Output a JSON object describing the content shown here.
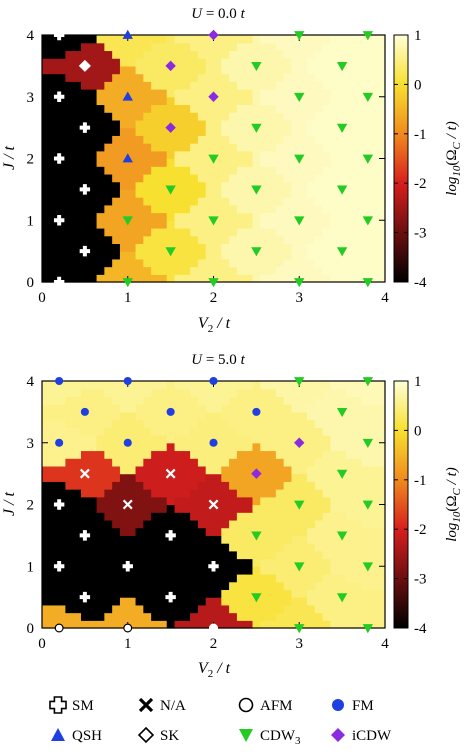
{
  "colorbar": {
    "label": "log10(ΩC / t)",
    "label_parts": {
      "fn": "log",
      "fn_sub": "10",
      "sym": "Ω",
      "sym_sub": "C",
      "tail": " / t)"
    },
    "ticks": [
      "1",
      "0",
      "-1",
      "-2",
      "-3",
      "-4"
    ],
    "range": [
      -4,
      1
    ],
    "colormap": [
      "#000000",
      "#6b0f0f",
      "#d81e1e",
      "#f08a1e",
      "#f8e030",
      "#ffffd8"
    ]
  },
  "legend": {
    "items": [
      {
        "key": "SM",
        "label": "SM",
        "color": "#000000"
      },
      {
        "key": "NA",
        "label": "N/A",
        "color": "#000000"
      },
      {
        "key": "AFM",
        "label": "AFM",
        "color": "#000000"
      },
      {
        "key": "FM",
        "label": "FM",
        "color": "#1f3fe0"
      },
      {
        "key": "QSH",
        "label": "QSH",
        "color": "#1f3fe0"
      },
      {
        "key": "SK",
        "label": "SK",
        "color": "#000000"
      },
      {
        "key": "CDW3",
        "label": "CDW",
        "label_sub": "3",
        "color": "#22cc22"
      },
      {
        "key": "iCDW",
        "label": "iCDW",
        "color": "#8a2be2"
      }
    ]
  },
  "chart_data": [
    {
      "type": "heatmap",
      "title": "U = 0.0 t",
      "title_parts": {
        "a": "U",
        "b": " = 0.0 ",
        "c": "t"
      },
      "xlabel": "V2 / t",
      "ylabel": "J / t",
      "xlim": [
        0,
        4
      ],
      "ylim": [
        0,
        4
      ],
      "xticks": [
        "0",
        "1",
        "2",
        "3",
        "4"
      ],
      "yticks": [
        "0",
        "1",
        "2",
        "3",
        "4"
      ],
      "points": [
        {
          "x": 0.2,
          "y": 4.0,
          "phase": "SM",
          "val": -4.0
        },
        {
          "x": 1.0,
          "y": 4.0,
          "phase": "QSH",
          "val": 0.2
        },
        {
          "x": 2.0,
          "y": 4.0,
          "phase": "iCDW",
          "val": 0.5
        },
        {
          "x": 3.0,
          "y": 4.0,
          "phase": "CDW3",
          "val": 0.85
        },
        {
          "x": 3.8,
          "y": 4.0,
          "phase": "CDW3",
          "val": 0.9
        },
        {
          "x": 0.5,
          "y": 3.5,
          "phase": "SK",
          "val": -2.5
        },
        {
          "x": 1.5,
          "y": 3.5,
          "phase": "iCDW",
          "val": 0.3
        },
        {
          "x": 2.5,
          "y": 3.5,
          "phase": "CDW3",
          "val": 0.75
        },
        {
          "x": 3.5,
          "y": 3.5,
          "phase": "CDW3",
          "val": 0.9
        },
        {
          "x": 0.2,
          "y": 3.0,
          "phase": "SM",
          "val": -4.0
        },
        {
          "x": 1.0,
          "y": 3.0,
          "phase": "QSH",
          "val": -0.6
        },
        {
          "x": 2.0,
          "y": 3.0,
          "phase": "iCDW",
          "val": 0.5
        },
        {
          "x": 3.0,
          "y": 3.0,
          "phase": "CDW3",
          "val": 0.85
        },
        {
          "x": 3.8,
          "y": 3.0,
          "phase": "CDW3",
          "val": 0.9
        },
        {
          "x": 0.5,
          "y": 2.5,
          "phase": "SM",
          "val": -4.0
        },
        {
          "x": 1.5,
          "y": 2.5,
          "phase": "iCDW",
          "val": -0.2
        },
        {
          "x": 2.5,
          "y": 2.5,
          "phase": "CDW3",
          "val": 0.75
        },
        {
          "x": 3.5,
          "y": 2.5,
          "phase": "CDW3",
          "val": 0.9
        },
        {
          "x": 0.2,
          "y": 2.0,
          "phase": "SM",
          "val": -4.0
        },
        {
          "x": 1.0,
          "y": 2.0,
          "phase": "QSH",
          "val": -0.8
        },
        {
          "x": 2.0,
          "y": 2.0,
          "phase": "CDW3",
          "val": 0.5
        },
        {
          "x": 3.0,
          "y": 2.0,
          "phase": "CDW3",
          "val": 0.85
        },
        {
          "x": 3.8,
          "y": 2.0,
          "phase": "CDW3",
          "val": 0.9
        },
        {
          "x": 0.5,
          "y": 1.5,
          "phase": "SM",
          "val": -4.0
        },
        {
          "x": 1.5,
          "y": 1.5,
          "phase": "CDW3",
          "val": 0.0
        },
        {
          "x": 2.5,
          "y": 1.5,
          "phase": "CDW3",
          "val": 0.75
        },
        {
          "x": 3.5,
          "y": 1.5,
          "phase": "CDW3",
          "val": 0.9
        },
        {
          "x": 0.2,
          "y": 1.0,
          "phase": "SM",
          "val": -4.0
        },
        {
          "x": 1.0,
          "y": 1.0,
          "phase": "CDW3",
          "val": -0.7
        },
        {
          "x": 2.0,
          "y": 1.0,
          "phase": "CDW3",
          "val": 0.5
        },
        {
          "x": 3.0,
          "y": 1.0,
          "phase": "CDW3",
          "val": 0.85
        },
        {
          "x": 3.8,
          "y": 1.0,
          "phase": "CDW3",
          "val": 0.9
        },
        {
          "x": 0.5,
          "y": 0.5,
          "phase": "SM",
          "val": -4.0
        },
        {
          "x": 1.5,
          "y": 0.5,
          "phase": "CDW3",
          "val": 0.1
        },
        {
          "x": 2.5,
          "y": 0.5,
          "phase": "CDW3",
          "val": 0.75
        },
        {
          "x": 3.5,
          "y": 0.5,
          "phase": "CDW3",
          "val": 0.9
        },
        {
          "x": 0.2,
          "y": 0.0,
          "phase": "SM",
          "val": -4.0
        },
        {
          "x": 1.0,
          "y": 0.0,
          "phase": "CDW3",
          "val": -0.5
        },
        {
          "x": 2.0,
          "y": 0.0,
          "phase": "CDW3",
          "val": 0.5
        },
        {
          "x": 3.0,
          "y": 0.0,
          "phase": "CDW3",
          "val": 0.85
        },
        {
          "x": 3.8,
          "y": 0.0,
          "phase": "CDW3",
          "val": 0.9
        }
      ]
    },
    {
      "type": "heatmap",
      "title": "U = 5.0 t",
      "title_parts": {
        "a": "U",
        "b": " = 5.0 ",
        "c": "t"
      },
      "xlabel": "V2 / t",
      "ylabel": "J / t",
      "xlim": [
        0,
        4
      ],
      "ylim": [
        0,
        4
      ],
      "xticks": [
        "0",
        "1",
        "2",
        "3",
        "4"
      ],
      "yticks": [
        "0",
        "1",
        "2",
        "3",
        "4"
      ],
      "points": [
        {
          "x": 0.2,
          "y": 4.0,
          "phase": "FM",
          "val": 0.6
        },
        {
          "x": 1.0,
          "y": 4.0,
          "phase": "FM",
          "val": 0.6
        },
        {
          "x": 2.0,
          "y": 4.0,
          "phase": "FM",
          "val": 0.6
        },
        {
          "x": 3.0,
          "y": 4.0,
          "phase": "CDW3",
          "val": 0.7
        },
        {
          "x": 3.8,
          "y": 4.0,
          "phase": "CDW3",
          "val": 0.8
        },
        {
          "x": 0.5,
          "y": 3.5,
          "phase": "FM",
          "val": 0.5
        },
        {
          "x": 1.5,
          "y": 3.5,
          "phase": "FM",
          "val": 0.5
        },
        {
          "x": 2.5,
          "y": 3.5,
          "phase": "FM",
          "val": 0.5
        },
        {
          "x": 3.5,
          "y": 3.5,
          "phase": "CDW3",
          "val": 0.75
        },
        {
          "x": 0.2,
          "y": 3.0,
          "phase": "FM",
          "val": 0.55
        },
        {
          "x": 1.0,
          "y": 3.0,
          "phase": "FM",
          "val": 0.4
        },
        {
          "x": 2.0,
          "y": 3.0,
          "phase": "FM",
          "val": 0.45
        },
        {
          "x": 3.0,
          "y": 3.0,
          "phase": "iCDW",
          "val": 0.5
        },
        {
          "x": 3.8,
          "y": 3.0,
          "phase": "CDW3",
          "val": 0.75
        },
        {
          "x": 0.5,
          "y": 2.5,
          "phase": "NA",
          "val": -1.8
        },
        {
          "x": 1.5,
          "y": 2.5,
          "phase": "NA",
          "val": -2.1
        },
        {
          "x": 2.5,
          "y": 2.5,
          "phase": "iCDW",
          "val": -0.7
        },
        {
          "x": 3.5,
          "y": 2.5,
          "phase": "CDW3",
          "val": 0.6
        },
        {
          "x": 0.2,
          "y": 2.0,
          "phase": "SM",
          "val": -4.0
        },
        {
          "x": 1.0,
          "y": 2.0,
          "phase": "NA",
          "val": -2.8
        },
        {
          "x": 2.0,
          "y": 2.0,
          "phase": "NA",
          "val": -2.2
        },
        {
          "x": 3.0,
          "y": 2.0,
          "phase": "CDW3",
          "val": 0.3
        },
        {
          "x": 3.8,
          "y": 2.0,
          "phase": "CDW3",
          "val": 0.6
        },
        {
          "x": 0.5,
          "y": 1.5,
          "phase": "SM",
          "val": -4.0
        },
        {
          "x": 1.5,
          "y": 1.5,
          "phase": "SM",
          "val": -4.0
        },
        {
          "x": 2.5,
          "y": 1.5,
          "phase": "CDW3",
          "val": 0.3
        },
        {
          "x": 3.5,
          "y": 1.5,
          "phase": "CDW3",
          "val": 0.55
        },
        {
          "x": 0.2,
          "y": 1.0,
          "phase": "SM",
          "val": -4.0
        },
        {
          "x": 1.0,
          "y": 1.0,
          "phase": "SM",
          "val": -4.0
        },
        {
          "x": 2.0,
          "y": 1.0,
          "phase": "SM",
          "val": -4.0
        },
        {
          "x": 3.0,
          "y": 1.0,
          "phase": "CDW3",
          "val": 0.4
        },
        {
          "x": 3.8,
          "y": 1.0,
          "phase": "CDW3",
          "val": 0.55
        },
        {
          "x": 0.5,
          "y": 0.5,
          "phase": "SM",
          "val": -4.0
        },
        {
          "x": 1.5,
          "y": 0.5,
          "phase": "SM",
          "val": -4.0
        },
        {
          "x": 2.5,
          "y": 0.5,
          "phase": "CDW3",
          "val": 0.1
        },
        {
          "x": 3.5,
          "y": 0.5,
          "phase": "CDW3",
          "val": 0.5
        },
        {
          "x": 0.2,
          "y": 0.0,
          "phase": "AFM",
          "val": -0.6
        },
        {
          "x": 1.0,
          "y": 0.0,
          "phase": "AFM",
          "val": -0.6
        },
        {
          "x": 2.0,
          "y": 0.0,
          "phase": "AFM",
          "val": -2.3
        },
        {
          "x": 3.0,
          "y": 0.0,
          "phase": "CDW3",
          "val": 0.2
        },
        {
          "x": 3.8,
          "y": 0.0,
          "phase": "CDW3",
          "val": 0.5
        }
      ]
    }
  ]
}
